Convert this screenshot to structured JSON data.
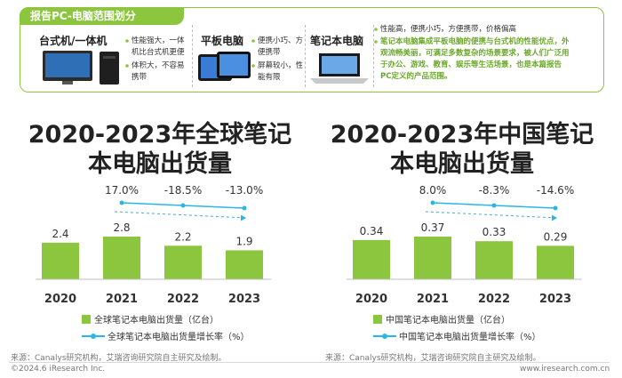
{
  "banner": {
    "tab_label": "报告PC-电脑范围划分",
    "devices": [
      {
        "name": "台式机/一体机",
        "bullets": [
          "性能强大，一体机比台式机更便",
          "体积大，不容易携带"
        ]
      },
      {
        "name": "平板电脑",
        "bullets": [
          "便携小巧、方便携带",
          "屏幕较小，性能有限"
        ]
      },
      {
        "name": "笔记本电脑",
        "bullets": [
          "性能高，便携小巧，方便携带，价格偏高"
        ]
      }
    ],
    "green_note": "笔记本电脑集成平板电脑的便携与台式机的性能优点，外观流畅美丽，可满足多数复杂的场景要求，被人们广泛用于办公、游戏、教育、娱乐等生活场景，也是本篇报告PC定义的产品范围。"
  },
  "colors": {
    "bar": "#8cc63f",
    "line": "#2ab7e3",
    "accent": "#8cc63f"
  },
  "chart_data": [
    {
      "type": "bar",
      "title": "2020-2023年全球笔记本电脑出货量",
      "categories": [
        "2020",
        "2021",
        "2022",
        "2023"
      ],
      "series": [
        {
          "name": "全球笔记本电脑出货量（亿台）",
          "values": [
            2.4,
            2.8,
            2.2,
            1.9
          ],
          "labels": [
            "2.4",
            "2.8",
            "2.2",
            "1.9"
          ]
        },
        {
          "name": "全球笔记本电脑出货量增长率（%）",
          "values": [
            null,
            17.0,
            -18.5,
            -13.0
          ],
          "labels": [
            "",
            "17.0%",
            "-18.5%",
            "-13.0%"
          ]
        }
      ]
    },
    {
      "type": "bar",
      "title": "2020-2023年中国笔记本电脑出货量",
      "categories": [
        "2020",
        "2021",
        "2022",
        "2023"
      ],
      "series": [
        {
          "name": "中国笔记本电脑出货量（亿台）",
          "values": [
            0.34,
            0.37,
            0.33,
            0.29
          ],
          "labels": [
            "0.34",
            "0.37",
            "0.33",
            "0.29"
          ]
        },
        {
          "name": "中国笔记本电脑出货量增长率（%）",
          "values": [
            null,
            8.0,
            -8.3,
            -14.6
          ],
          "labels": [
            "",
            "8.0%",
            "-8.3%",
            "-14.6%"
          ]
        }
      ]
    }
  ],
  "footer": {
    "source_left": "来源：Canalys研究机构，艾瑞咨询研究院自主研究及绘制。",
    "source_right": "来源：Canalys研究机构，艾瑞咨询研究院自主研究及绘制。",
    "copyright": "©2024.6 iResearch Inc.",
    "website": "www.iresearch.com.cn"
  }
}
